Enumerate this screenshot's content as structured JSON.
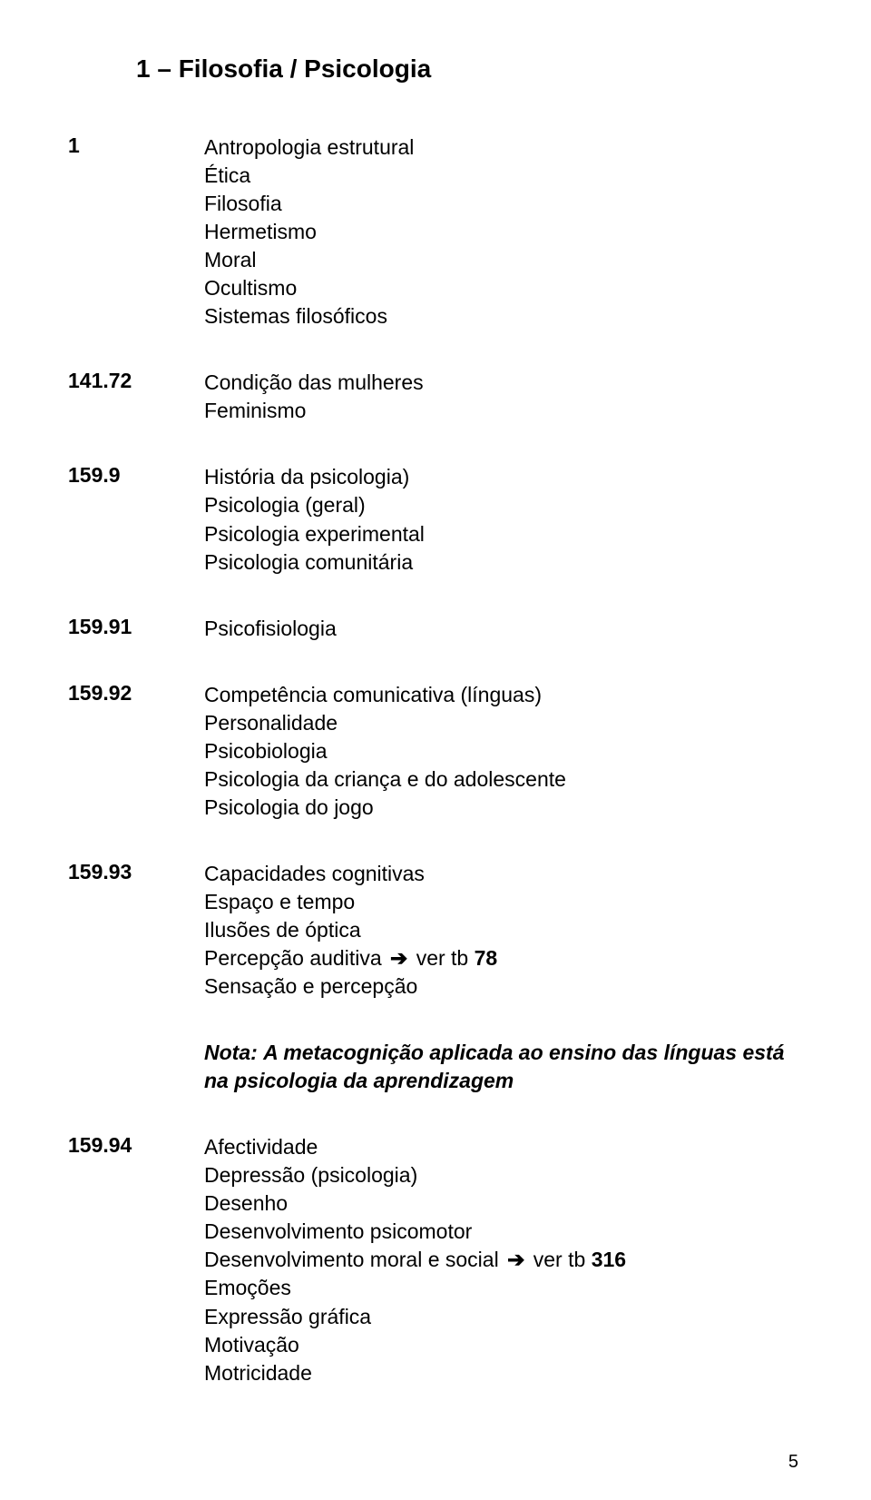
{
  "page": {
    "title": "1 – Filosofia / Psicologia",
    "number": "5"
  },
  "sections": [
    {
      "code": "1",
      "topics": [
        "Antropologia estrutural",
        "Ética",
        "Filosofia",
        "Hermetismo",
        "Moral",
        "Ocultismo",
        "Sistemas filosóficos"
      ]
    },
    {
      "code": "141.72",
      "topics": [
        "Condição das mulheres",
        "Feminismo"
      ]
    },
    {
      "code": "159.9",
      "topics": [
        "História da psicologia)",
        "Psicologia (geral)",
        "Psicologia experimental",
        "Psicologia comunitária"
      ]
    },
    {
      "code": "159.91",
      "topics": [
        "Psicofisiologia"
      ]
    },
    {
      "code": "159.92",
      "topics": [
        "Competência comunicativa (línguas)",
        "Personalidade",
        "Psicobiologia",
        "Psicologia da criança e do adolescente",
        "Psicologia do jogo"
      ]
    },
    {
      "code": "159.93",
      "topics_simple": [
        "Capacidades cognitivas",
        "Espaço e tempo",
        "Ilusões de óptica"
      ],
      "xref": {
        "prefix": "Percepção auditiva",
        "arrow": "➔",
        "see": "ver tb",
        "num": "78"
      },
      "topics_after": [
        "Sensação e percepção"
      ]
    }
  ],
  "note": {
    "label": "Nota:",
    "text": "A metacognição aplicada ao ensino das línguas está na psicologia da aprendizagem"
  },
  "section_15994": {
    "code": "159.94",
    "topics_simple": [
      "Afectividade",
      "Depressão (psicologia)",
      "Desenho",
      "Desenvolvimento psicomotor"
    ],
    "xref": {
      "prefix": "Desenvolvimento moral e social",
      "arrow": "➔",
      "see": "ver tb",
      "num": "316"
    },
    "topics_after": [
      "Emoções",
      "Expressão gráfica",
      "Motivação",
      "Motricidade"
    ]
  }
}
